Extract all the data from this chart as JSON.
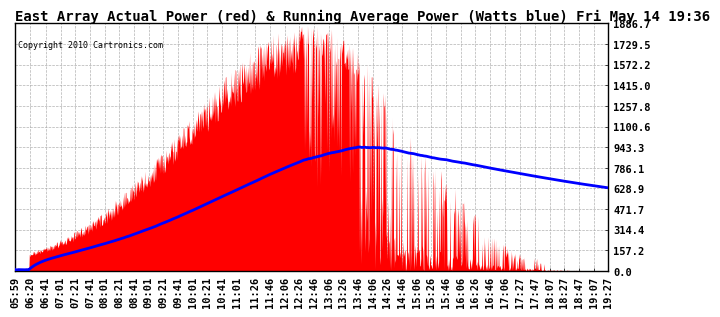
{
  "title": "East Array Actual Power (red) & Running Average Power (Watts blue) Fri May 14 19:36",
  "copyright": "Copyright 2010 Cartronics.com",
  "yticks": [
    0.0,
    157.2,
    314.4,
    471.7,
    628.9,
    786.1,
    943.3,
    1100.6,
    1257.8,
    1415.0,
    1572.2,
    1729.5,
    1886.7
  ],
  "ymax": 1886.7,
  "x_labels": [
    "05:59",
    "06:20",
    "06:41",
    "07:01",
    "07:21",
    "07:41",
    "08:01",
    "08:21",
    "08:41",
    "09:01",
    "09:21",
    "09:41",
    "10:01",
    "10:21",
    "10:41",
    "11:01",
    "11:26",
    "11:46",
    "12:06",
    "12:26",
    "12:46",
    "13:06",
    "13:26",
    "13:46",
    "14:06",
    "14:26",
    "14:46",
    "15:06",
    "15:26",
    "15:46",
    "16:06",
    "16:26",
    "16:46",
    "17:06",
    "17:27",
    "17:47",
    "18:07",
    "18:27",
    "18:47",
    "19:07",
    "19:27"
  ],
  "bg_color": "#ffffff",
  "plot_bg": "#ffffff",
  "grid_color": "#aaaaaa",
  "actual_color": "#ff0000",
  "avg_color": "#0000ff",
  "title_fontsize": 10,
  "tick_fontsize": 7.5
}
